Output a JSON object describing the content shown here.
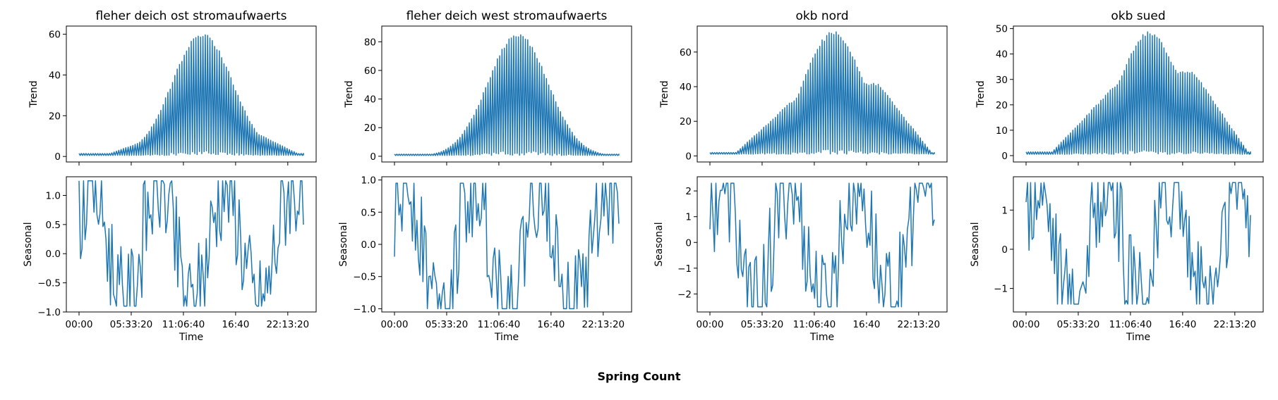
{
  "figure": {
    "title": "Spring Count",
    "line_color": "#1f77b4"
  },
  "time_ticks": [
    "00:00",
    "05:33:20",
    "11:06:40",
    "16:40",
    "22:13:20"
  ],
  "chart_data": [
    {
      "type": "line",
      "title": "fleher deich ost stromaufwaerts",
      "panels": [
        {
          "name": "trend",
          "ylabel": "Trend",
          "xlabel": "",
          "ylim": [
            -2.7,
            64
          ],
          "yticks": [
            "0",
            "20",
            "40",
            "60"
          ],
          "ytick_values": [
            0,
            20,
            40,
            60
          ],
          "description_values": {
            "peak": 61,
            "peak_fraction": 0.55,
            "min_envelope": 0.5,
            "plateau": 14
          }
        },
        {
          "name": "seasonal",
          "ylabel": "Seasonal",
          "xlabel": "Time",
          "ylim": [
            -1.0,
            1.32
          ],
          "yticks": [
            "−1.0",
            "−0.5",
            "0.0",
            "0.5",
            "1.0"
          ],
          "ytick_values": [
            -1.0,
            -0.5,
            0.0,
            0.5,
            1.0
          ],
          "range": [
            -0.9,
            1.25
          ]
        }
      ]
    },
    {
      "type": "line",
      "title": "fleher deich west stromaufwaerts",
      "panels": [
        {
          "name": "trend",
          "ylabel": "Trend",
          "xlabel": "",
          "ylim": [
            -4,
            91
          ],
          "yticks": [
            "0",
            "20",
            "40",
            "60",
            "80"
          ],
          "ytick_values": [
            0,
            20,
            40,
            60,
            80
          ],
          "description_values": {
            "peak": 86,
            "peak_fraction": 0.55,
            "min_envelope": 0.5,
            "plateau": 6
          }
        },
        {
          "name": "seasonal",
          "ylabel": "Seasonal",
          "xlabel": "Time",
          "ylim": [
            -1.05,
            1.05
          ],
          "yticks": [
            "−1.0",
            "−0.5",
            "0.0",
            "0.5",
            "1.0"
          ],
          "ytick_values": [
            -1.0,
            -0.5,
            0.0,
            0.5,
            1.0
          ],
          "range": [
            -1.0,
            0.95
          ]
        }
      ]
    },
    {
      "type": "line",
      "title": "okb nord",
      "panels": [
        {
          "name": "trend",
          "ylabel": "Trend",
          "xlabel": "",
          "ylim": [
            -3.5,
            75
          ],
          "yticks": [
            "0",
            "20",
            "40",
            "60"
          ],
          "ytick_values": [
            0,
            20,
            40,
            60
          ],
          "description_values": {
            "peak": 72,
            "peak_fraction": 0.55,
            "min_envelope": 1,
            "plateau": 42
          }
        },
        {
          "name": "seasonal",
          "ylabel": "Seasonal",
          "xlabel": "Time",
          "ylim": [
            -2.7,
            2.55
          ],
          "yticks": [
            "−2",
            "−1",
            "0",
            "1",
            "2"
          ],
          "ytick_values": [
            -2,
            -1,
            0,
            1,
            2
          ],
          "range": [
            -2.5,
            2.3
          ]
        }
      ]
    },
    {
      "type": "line",
      "title": "okb sued",
      "panels": [
        {
          "name": "trend",
          "ylabel": "Trend",
          "xlabel": "",
          "ylim": [
            -2.5,
            51
          ],
          "yticks": [
            "0",
            "10",
            "20",
            "30",
            "40",
            "50"
          ],
          "ytick_values": [
            0,
            10,
            20,
            30,
            40,
            50
          ],
          "description_values": {
            "peak": 49,
            "peak_fraction": 0.55,
            "min_envelope": 0.5,
            "plateau": 33
          }
        },
        {
          "name": "seasonal",
          "ylabel": "Seasonal",
          "xlabel": "Time",
          "ylim": [
            -1.6,
            1.85
          ],
          "yticks": [
            "−1",
            "0",
            "1"
          ],
          "ytick_values": [
            -1,
            0,
            1
          ],
          "range": [
            -1.4,
            1.7
          ]
        }
      ]
    }
  ]
}
